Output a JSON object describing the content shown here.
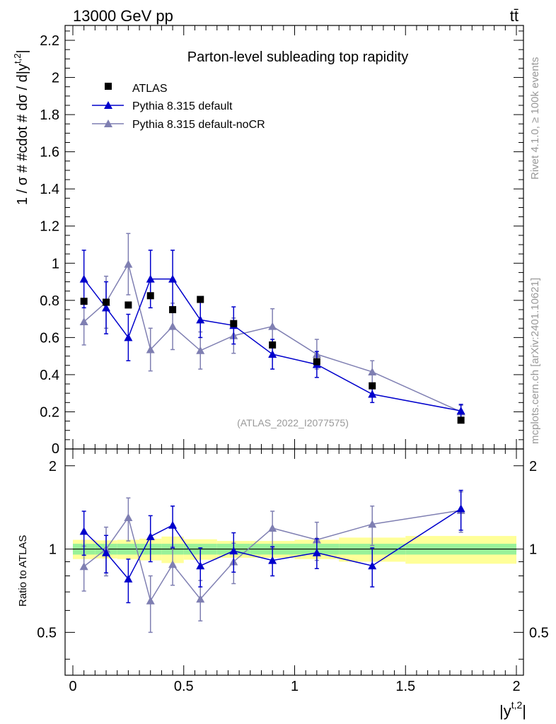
{
  "header": {
    "left": "13000 GeV pp",
    "right": "tt̄"
  },
  "side_labels": {
    "rivet": "Rivet 4.1.0, ≥ 100k events",
    "mcplots": "mcplots.cern.ch [arXiv:2401.10621]"
  },
  "colors": {
    "atlas": "#000000",
    "pythia_default": "#0000cc",
    "pythia_nocr": "#7f7fb2",
    "band_inner": "#99f299",
    "band_outer": "#ffff99",
    "watermark": "#999999"
  },
  "chart_data": [
    {
      "type": "line",
      "title": "Parton-level subleading top rapidity",
      "ylabel": "1 / σ # #cdot # dσ / d|y^{t,2}|",
      "ylabel_main": "1 / σ # #cdot # dσ / d|y",
      "ylabel_sup": "t,2",
      "ylabel_end": "|",
      "xlabel": "|y^{t,2}|",
      "xlabel_main": "|y",
      "xlabel_sup": "t,2",
      "xlabel_end": "|",
      "xlim": [
        0,
        2
      ],
      "ylim": [
        0,
        2.28
      ],
      "yticks": [
        0.2,
        0.4,
        0.6,
        0.8,
        1,
        1.2,
        1.4,
        1.6,
        1.8,
        2,
        2.2
      ],
      "yticklabels": [
        "0.2",
        "0.4",
        "0.6",
        "0.8",
        "1",
        "1.2",
        "1.4",
        "1.6",
        "1.8",
        "2",
        "2.2"
      ],
      "y_zero_label": "0",
      "watermark": "(ATLAS_2022_I2077575)",
      "legend": [
        "ATLAS",
        "Pythia 8.315 default",
        "Pythia 8.315 default-noCR"
      ],
      "bin_edges": [
        0,
        0.1,
        0.2,
        0.3,
        0.4,
        0.5,
        0.65,
        0.8,
        1.0,
        1.2,
        1.5,
        2.0
      ],
      "series": [
        {
          "name": "ATLAS",
          "marker": "square",
          "x": [
            0.05,
            0.15,
            0.25,
            0.35,
            0.45,
            0.575,
            0.725,
            0.9,
            1.1,
            1.35,
            1.75
          ],
          "y": [
            0.795,
            0.79,
            0.775,
            0.825,
            0.75,
            0.805,
            0.675,
            0.56,
            0.47,
            0.34,
            0.155
          ],
          "err": [
            0.015,
            0.015,
            0.015,
            0.015,
            0.015,
            0.015,
            0.015,
            0.015,
            0.015,
            0.012,
            0.008
          ]
        },
        {
          "name": "Pythia 8.315 default",
          "marker": "triangle",
          "x": [
            0.05,
            0.15,
            0.25,
            0.35,
            0.45,
            0.575,
            0.725,
            0.9,
            1.1,
            1.35,
            1.75
          ],
          "y": [
            0.915,
            0.76,
            0.6,
            0.915,
            0.915,
            0.695,
            0.665,
            0.51,
            0.455,
            0.295,
            0.205
          ],
          "err": [
            0.155,
            0.14,
            0.125,
            0.155,
            0.155,
            0.095,
            0.1,
            0.08,
            0.07,
            0.045,
            0.035
          ]
        },
        {
          "name": "Pythia 8.315 default-noCR",
          "marker": "triangle",
          "x": [
            0.05,
            0.15,
            0.25,
            0.35,
            0.45,
            0.575,
            0.725,
            0.9,
            1.1,
            1.35,
            1.75
          ],
          "y": [
            0.685,
            0.79,
            0.995,
            0.535,
            0.66,
            0.53,
            0.61,
            0.66,
            0.51,
            0.415,
            0.2
          ],
          "err": [
            0.125,
            0.14,
            0.165,
            0.115,
            0.125,
            0.1,
            0.095,
            0.095,
            0.08,
            0.06,
            0.035
          ]
        }
      ]
    },
    {
      "type": "line",
      "title": "",
      "ylabel": "Ratio to ATLAS",
      "xlabel": "|y^{t,2}|",
      "xlim": [
        0,
        2
      ],
      "ylim": [
        0.35,
        2.3
      ],
      "yscale": "log",
      "yticks": [
        0.5,
        1,
        2
      ],
      "yticklabels": [
        "0.5",
        "1",
        "2"
      ],
      "xticks": [
        0,
        0.5,
        1,
        1.5,
        2
      ],
      "xticklabels": [
        "0",
        "0.5",
        "1",
        "1.5",
        "2"
      ],
      "reference_line": 1,
      "bands": {
        "inner_half": [
          0.045,
          0.045,
          0.045,
          0.045,
          0.045,
          0.045,
          0.045,
          0.045,
          0.045,
          0.045,
          0.045
        ],
        "outer_half": [
          0.08,
          0.075,
          0.08,
          0.09,
          0.11,
          0.085,
          0.07,
          0.07,
          0.08,
          0.1,
          0.115
        ]
      },
      "series": [
        {
          "name": "Pythia 8.315 default",
          "x": [
            0.05,
            0.15,
            0.25,
            0.35,
            0.45,
            0.575,
            0.725,
            0.9,
            1.1,
            1.35,
            1.75
          ],
          "y": [
            1.16,
            0.97,
            0.78,
            1.11,
            1.22,
            0.87,
            0.985,
            0.91,
            0.97,
            0.87,
            1.4
          ],
          "err": [
            0.21,
            0.15,
            0.14,
            0.21,
            0.21,
            0.14,
            0.16,
            0.11,
            0.12,
            0.14,
            0.23
          ]
        },
        {
          "name": "Pythia 8.315 default-noCR",
          "x": [
            0.05,
            0.15,
            0.25,
            0.35,
            0.45,
            0.575,
            0.725,
            0.9,
            1.1,
            1.35,
            1.75
          ],
          "y": [
            0.865,
            1.0,
            1.3,
            0.65,
            0.88,
            0.66,
            0.9,
            1.19,
            1.08,
            1.23,
            1.38
          ],
          "err": [
            0.16,
            0.2,
            0.23,
            0.15,
            0.14,
            0.11,
            0.15,
            0.18,
            0.17,
            0.2,
            0.23
          ]
        }
      ]
    }
  ]
}
